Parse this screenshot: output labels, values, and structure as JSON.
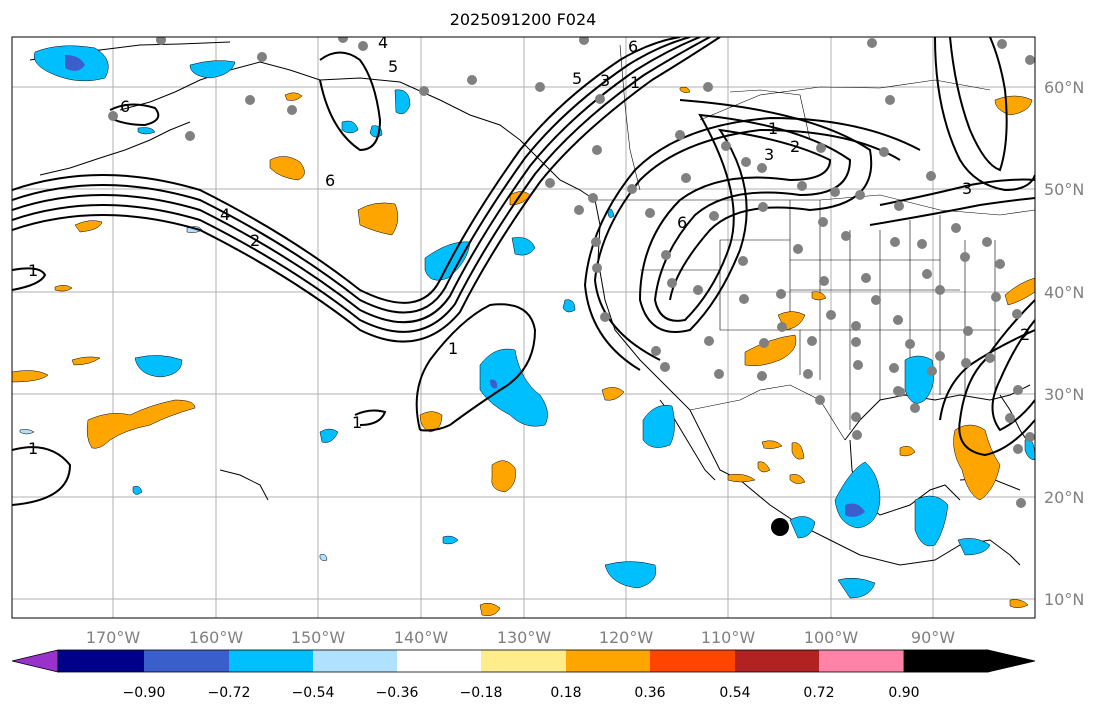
{
  "title": "2025091200 F024",
  "map": {
    "extent": {
      "lon": [
        -180,
        -79
      ],
      "lat": [
        8,
        65
      ]
    },
    "lon_ticks": [
      "170°W",
      "160°W",
      "150°W",
      "140°W",
      "130°W",
      "120°W",
      "110°W",
      "100°W",
      "90°W"
    ],
    "lat_ticks": [
      "60°N",
      "50°N",
      "40°N",
      "30°N",
      "20°N",
      "10°N"
    ],
    "contour_labels": [
      "1",
      "2",
      "3",
      "4",
      "5",
      "6"
    ],
    "marker": "storm-center-dot"
  },
  "colorbar": {
    "ticks": [
      "−0.90",
      "−0.72",
      "−0.54",
      "−0.36",
      "−0.18",
      "0.18",
      "0.36",
      "0.54",
      "0.72",
      "0.90"
    ],
    "colors": [
      "#9932cc",
      "#00008b",
      "#3a5fcd",
      "#00bfff",
      "#b0e2ff",
      "#ffffff",
      "#ffec8b",
      "#ffa500",
      "#ff4500",
      "#b22222",
      "#ff83a8"
    ]
  }
}
